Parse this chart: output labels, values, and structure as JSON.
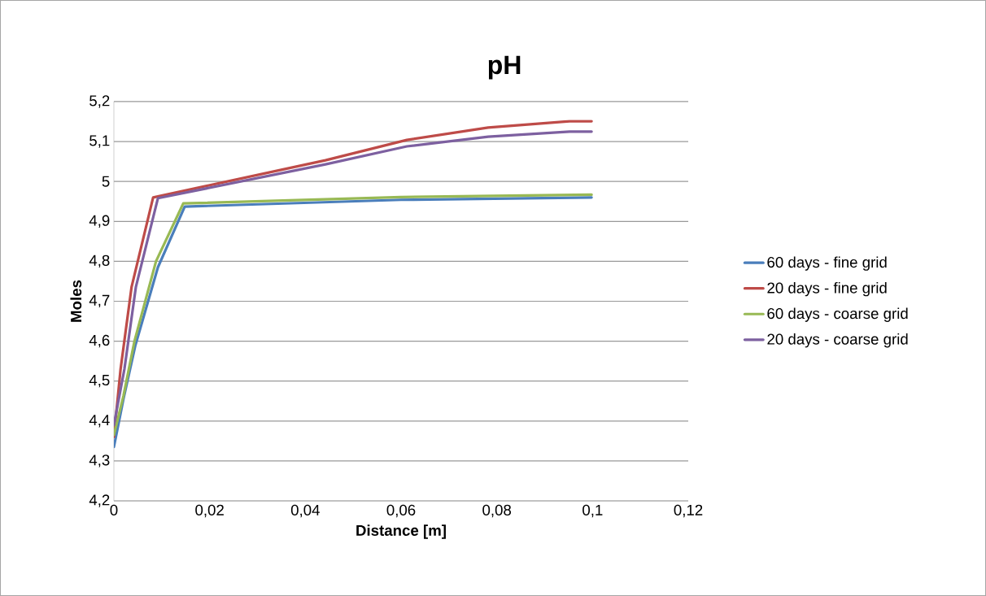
{
  "chart_data": {
    "type": "line",
    "title": "pH",
    "xlabel": "Distance [m]",
    "ylabel": "Moles",
    "series": [
      {
        "name": "60 days - fine grid",
        "color": "#4a7ebb",
        "x": [
          0,
          0.002,
          0.0045,
          0.0092,
          0.0148,
          0.06,
          0.0998
        ],
        "values": [
          4.335,
          4.455,
          4.59,
          4.785,
          4.937,
          4.954,
          4.96
        ]
      },
      {
        "name": "20 days - fine grid",
        "color": "#be4b48",
        "x": [
          0,
          0.0014,
          0.0037,
          0.0082,
          0.0442,
          0.0612,
          0.0782,
          0.0952,
          0.0998
        ],
        "values": [
          4.36,
          4.53,
          4.736,
          4.96,
          5.053,
          5.104,
          5.135,
          5.151,
          5.151
        ]
      },
      {
        "name": "60 days - coarse grid",
        "color": "#98b954",
        "x": [
          0,
          0.002,
          0.0043,
          0.0088,
          0.0145,
          0.06,
          0.0998
        ],
        "values": [
          4.365,
          4.463,
          4.6,
          4.8,
          4.945,
          4.961,
          4.967
        ]
      },
      {
        "name": "20 days - coarse grid",
        "color": "#7d60a0",
        "x": [
          0,
          0.0022,
          0.0046,
          0.0092,
          0.0442,
          0.0612,
          0.0782,
          0.0952,
          0.0998
        ],
        "values": [
          4.39,
          4.53,
          4.736,
          4.958,
          5.043,
          5.088,
          5.112,
          5.125,
          5.125
        ]
      }
    ],
    "xlim": [
      0,
      0.12
    ],
    "ylim": [
      4.2,
      5.2
    ],
    "xticks": [
      {
        "value": 0,
        "label": "0"
      },
      {
        "value": 0.02,
        "label": "0,02"
      },
      {
        "value": 0.04,
        "label": "0,04"
      },
      {
        "value": 0.06,
        "label": "0,06"
      },
      {
        "value": 0.08,
        "label": "0,08"
      },
      {
        "value": 0.1,
        "label": "0,1"
      },
      {
        "value": 0.12,
        "label": "0,12"
      }
    ],
    "yticks": [
      {
        "value": 4.2,
        "label": "4,2"
      },
      {
        "value": 4.3,
        "label": "4,3"
      },
      {
        "value": 4.4,
        "label": "4,4"
      },
      {
        "value": 4.5,
        "label": "4,5"
      },
      {
        "value": 4.6,
        "label": "4,6"
      },
      {
        "value": 4.7,
        "label": "4,7"
      },
      {
        "value": 4.8,
        "label": "4,8"
      },
      {
        "value": 4.9,
        "label": "4,9"
      },
      {
        "value": 5,
        "label": "5"
      },
      {
        "value": 5.1,
        "label": "5,1"
      },
      {
        "value": 5.2,
        "label": "5,2"
      }
    ],
    "grid": "y",
    "legend": "right",
    "marker": "none",
    "line_style": "solid"
  }
}
